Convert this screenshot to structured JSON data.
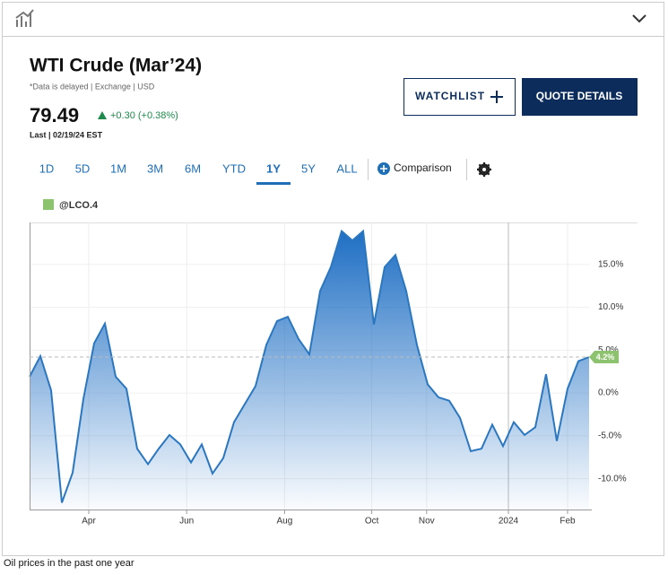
{
  "header": {
    "title": "WTI Crude (Mar’24)",
    "note": "*Data is delayed | Exchange | USD",
    "price": "79.49",
    "change": "+0.30 (+0.38%)",
    "last": "Last | 02/19/24 EST"
  },
  "buttons": {
    "watchlist": "WATCHLIST",
    "quote": "QUOTE DETAILS"
  },
  "ranges": [
    "1D",
    "5D",
    "1M",
    "3M",
    "6M",
    "YTD",
    "1Y",
    "5Y",
    "ALL"
  ],
  "comparison": "Comparison",
  "caption": "Oil prices in the past one year",
  "chart_data": {
    "type": "area",
    "series": [
      {
        "name": "@LCO.4",
        "color": "#2a77c0",
        "legend_color": "#8dc26f",
        "values": [
          1.9,
          4.3,
          0.3,
          -12.8,
          -9.3,
          -0.7,
          5.8,
          8.1,
          1.9,
          0.5,
          -6.5,
          -8.3,
          -6.5,
          -4.9,
          -6.0,
          -8.1,
          -6.0,
          -9.4,
          -7.6,
          -3.4,
          -1.3,
          0.8,
          5.6,
          8.4,
          8.9,
          6.3,
          4.5,
          11.9,
          14.7,
          18.9,
          17.8,
          18.9,
          8.0,
          14.7,
          16.1,
          11.9,
          5.6,
          1.0,
          -0.5,
          -0.9,
          -2.9,
          -6.8,
          -6.5,
          -3.7,
          -6.2,
          -3.4,
          -4.9,
          -4.0,
          2.2,
          -5.6,
          0.5,
          3.7,
          4.2
        ]
      }
    ],
    "current": {
      "value": 4.2,
      "label": "4.2%"
    },
    "xlim": [
      0,
      52
    ],
    "xticks": [
      {
        "value": 5.5,
        "label": "Apr"
      },
      {
        "value": 14.6,
        "label": "Jun"
      },
      {
        "value": 23.7,
        "label": "Aug"
      },
      {
        "value": 31.8,
        "label": "Oct"
      },
      {
        "value": 36.9,
        "label": "Nov"
      },
      {
        "value": 44.5,
        "label": "2024"
      },
      {
        "value": 50,
        "label": "Feb"
      }
    ],
    "ylim": [
      -13.6,
      19.9
    ],
    "yticks": [
      {
        "value": -10,
        "label": "-10.0%"
      },
      {
        "value": -5,
        "label": "-5.0%"
      },
      {
        "value": 0,
        "label": "0.0%"
      },
      {
        "value": 5,
        "label": "5.0%"
      },
      {
        "value": 10,
        "label": "10.0%"
      },
      {
        "value": 15,
        "label": "15.0%"
      }
    ],
    "grid": true
  }
}
